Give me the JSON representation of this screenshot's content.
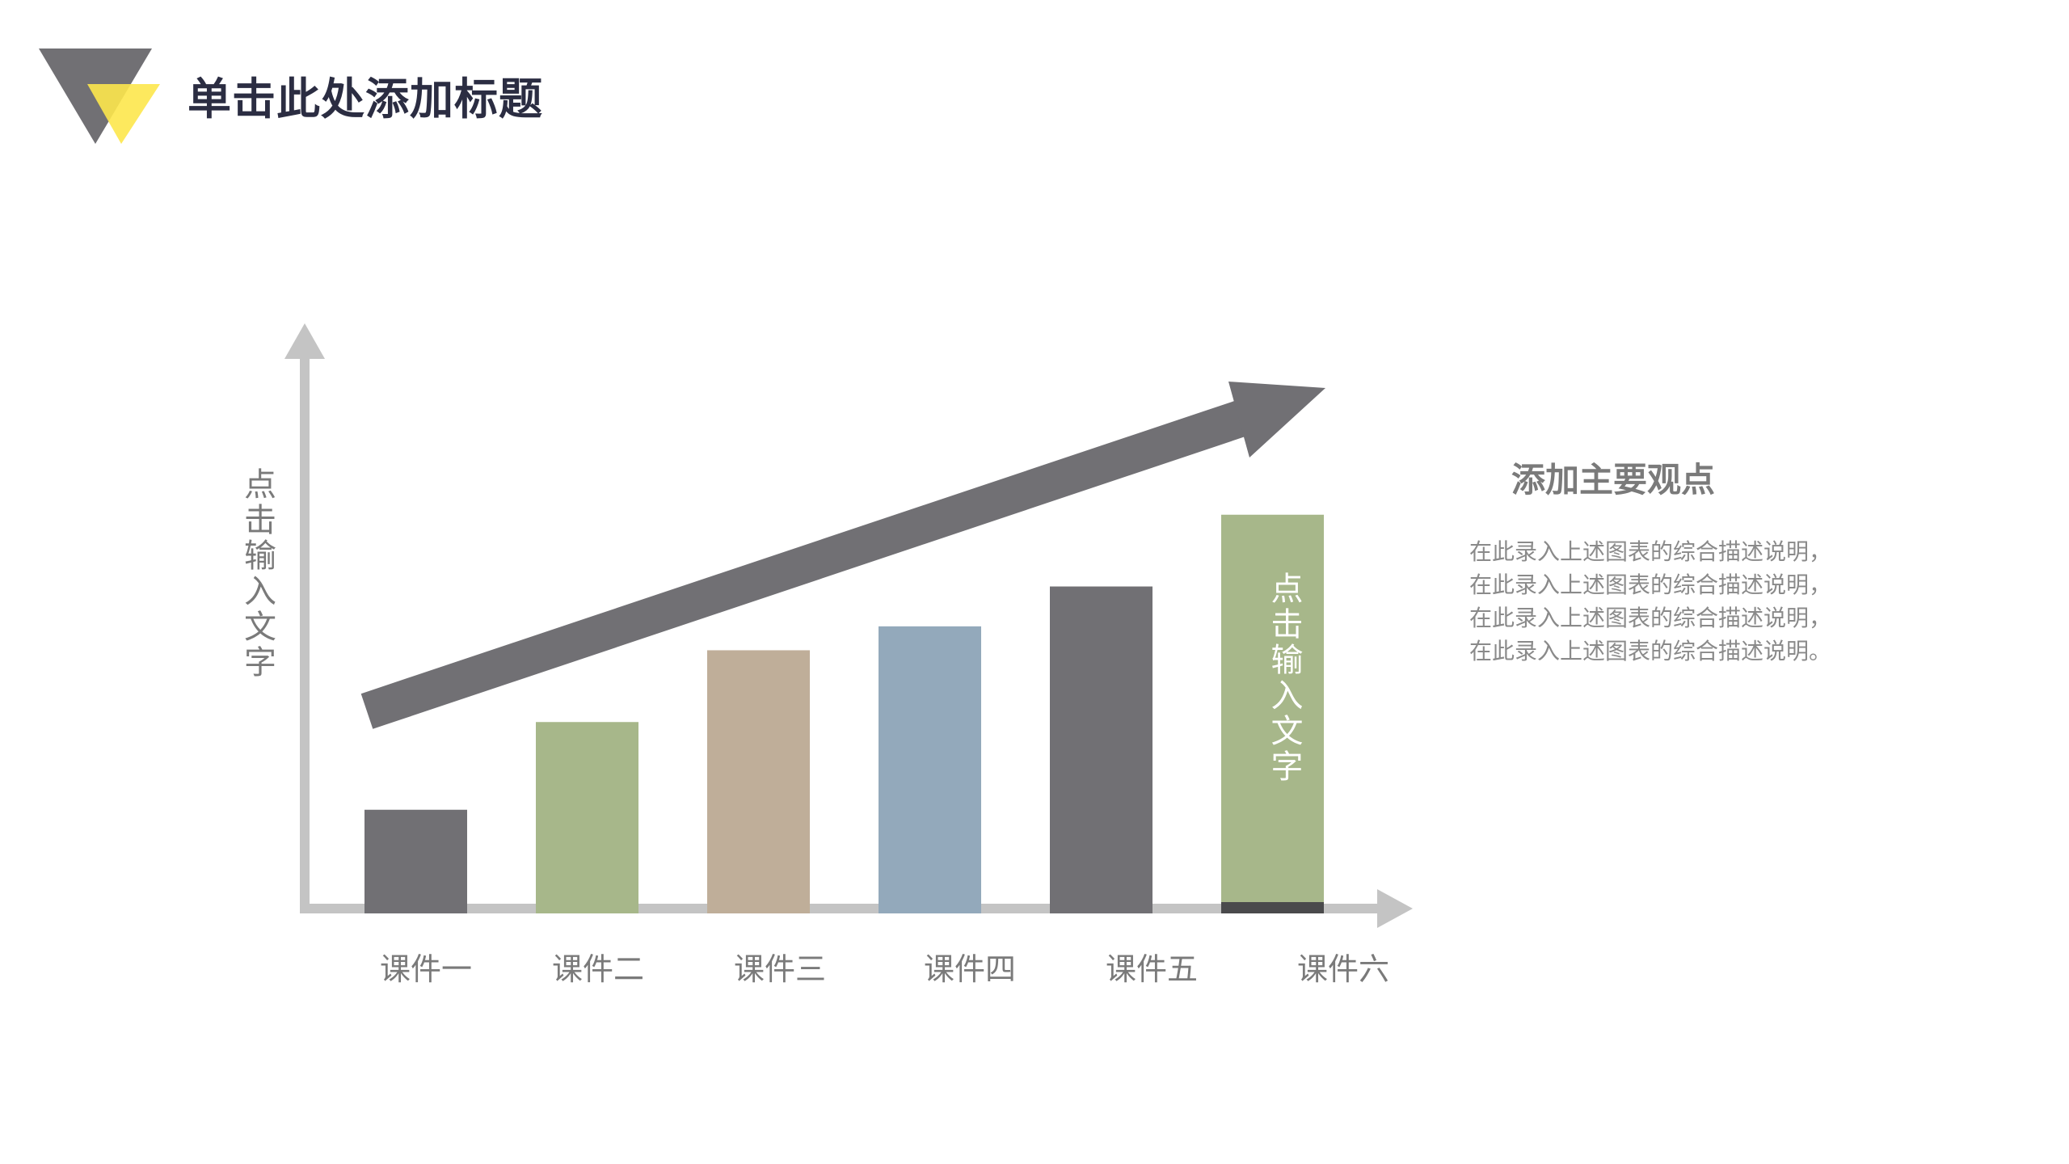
{
  "header": {
    "title": "单击此处添加标题"
  },
  "side_panel": {
    "title": "添加主要观点",
    "description": [
      "在此录入上述图表的综合描述说明，",
      "在此录入上述图表的综合描述说明，",
      "在此录入上述图表的综合描述说明，",
      "在此录入上述图表的综合描述说明。"
    ]
  },
  "chart_data": {
    "type": "bar",
    "title": "",
    "xlabel": "",
    "ylabel": "点击输入文字",
    "categories": [
      "课件一",
      "课件二",
      "课件三",
      "课件四",
      "课件五",
      "课件六"
    ],
    "values": [
      13,
      24,
      33,
      36,
      41,
      50
    ],
    "bar_colors": [
      "#717074",
      "#a7b78a",
      "#bfae99",
      "#93a9bb",
      "#717074",
      "#a7b78a"
    ],
    "bar_labels": [
      "",
      "",
      "",
      "",
      "",
      "点击输入文字"
    ],
    "ylim": [
      0,
      74
    ],
    "grid": false,
    "legend": "none",
    "annotations": [
      "upward trend arrow"
    ]
  },
  "colors": {
    "axis": "#c4c4c4",
    "trend_arrow": "#717074",
    "logo_dark": "#717074",
    "logo_accent": "#fde74c",
    "title_text": "#2b2d42",
    "label_text": "#7a7a7a"
  }
}
